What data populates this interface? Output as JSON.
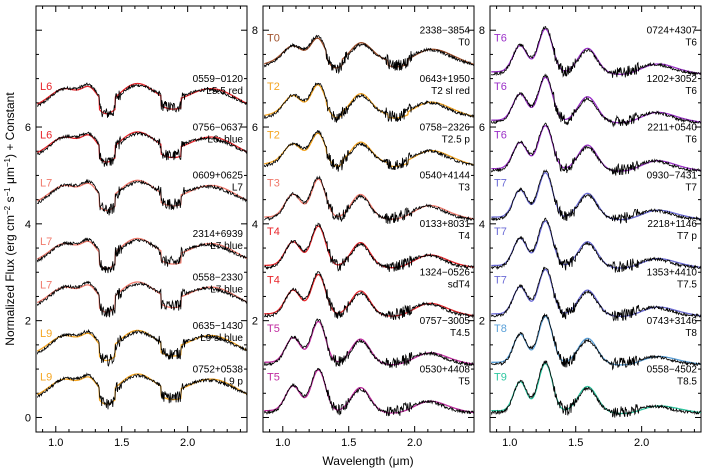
{
  "chart_data": {
    "type": "line",
    "ylabel_parts": [
      "Normalized Flux (erg cm",
      "−2",
      " s",
      "−1",
      " μm",
      "−1",
      ") + Constant"
    ],
    "xlabel": "Wavelength (μm)",
    "xlim": [
      0.85,
      2.45
    ],
    "xticks": [
      1.0,
      1.5,
      2.0
    ],
    "xtick_labels": [
      "1.0",
      "1.5",
      "2.0"
    ],
    "panels": [
      {
        "ylim": [
          -0.3,
          8.5
        ],
        "yticks": [
          0,
          2,
          4,
          6
        ],
        "ytick_labels": [
          "0",
          "2",
          "4",
          "6"
        ],
        "spectra": [
          {
            "type_label": "L6",
            "type_color": "#e8262b",
            "model_color": "#e8262b",
            "name": "0559−0120",
            "desc": "L5.5 red",
            "offset": 6.0,
            "kind": "L"
          },
          {
            "type_label": "L6",
            "type_color": "#e8262b",
            "model_color": "#e8262b",
            "name": "0756−0637",
            "desc": "L6: blue",
            "offset": 5.0,
            "kind": "L"
          },
          {
            "type_label": "L7",
            "type_color": "#f07a6c",
            "model_color": "#f07a6c",
            "name": "0609+0625",
            "desc": "L7",
            "offset": 4.0,
            "kind": "L"
          },
          {
            "type_label": "L7",
            "type_color": "#f07a6c",
            "model_color": "#f07a6c",
            "name": "2314+6939",
            "desc": "L7 blue",
            "offset": 2.8,
            "kind": "L"
          },
          {
            "type_label": "L7",
            "type_color": "#f07a6c",
            "model_color": "#f07a6c",
            "name": "0558−2330",
            "desc": "L7 blue",
            "offset": 1.9,
            "kind": "L"
          },
          {
            "type_label": "L9",
            "type_color": "#f5a623",
            "model_color": "#f5a623",
            "name": "0635−1430",
            "desc": "L9 sl blue",
            "offset": 0.9,
            "kind": "L"
          },
          {
            "type_label": "L9",
            "type_color": "#f5a623",
            "model_color": "#f5a623",
            "name": "0752+0538",
            "desc": "L9 p",
            "offset": 0.0,
            "kind": "L"
          }
        ]
      },
      {
        "ylim": [
          -0.3,
          8.5
        ],
        "yticks": [
          2,
          4,
          6,
          8
        ],
        "ytick_labels": [
          "2",
          "4",
          "6",
          "8"
        ],
        "spectra": [
          {
            "type_label": "T0",
            "type_color": "#a0522d",
            "model_color": "#a0522d",
            "name": "2338−3854",
            "desc": "T0",
            "offset": 7.0,
            "kind": "T0"
          },
          {
            "type_label": "T2",
            "type_color": "#f5a623",
            "model_color": "#f5a623",
            "name": "0643+1950",
            "desc": "T2 sl red",
            "offset": 6.0,
            "kind": "T2"
          },
          {
            "type_label": "T2",
            "type_color": "#f5a623",
            "model_color": "#f5a623",
            "name": "0758−2326",
            "desc": "T2.5 p",
            "offset": 5.0,
            "kind": "T2"
          },
          {
            "type_label": "T3",
            "type_color": "#f07a6c",
            "model_color": "#f07a6c",
            "name": "0540+4144",
            "desc": "T3",
            "offset": 4.0,
            "kind": "T3"
          },
          {
            "type_label": "T4",
            "type_color": "#e8262b",
            "model_color": "#e8262b",
            "name": "0133+8031",
            "desc": "T4",
            "offset": 3.0,
            "kind": "T4"
          },
          {
            "type_label": "T4",
            "type_color": "#e8262b",
            "model_color": "#e8262b",
            "name": "1324−0526",
            "desc": "sdT4",
            "offset": 2.0,
            "kind": "T4"
          },
          {
            "type_label": "T5",
            "type_color": "#c02ca0",
            "model_color": "#c02ca0",
            "name": "0757−3005",
            "desc": "T4.5",
            "offset": 1.0,
            "kind": "T5"
          },
          {
            "type_label": "T5",
            "type_color": "#c02ca0",
            "model_color": "#c02ca0",
            "name": "0530+4408",
            "desc": "T5",
            "offset": 0.0,
            "kind": "T5"
          }
        ]
      },
      {
        "ylim": [
          -0.3,
          8.5
        ],
        "yticks": [
          2,
          4,
          6,
          8
        ],
        "ytick_labels": [
          "2",
          "4",
          "6",
          "8"
        ],
        "spectra": [
          {
            "type_label": "T6",
            "type_color": "#9b30c8",
            "model_color": "#9b30c8",
            "name": "0724+4307",
            "desc": "T6",
            "offset": 7.0,
            "kind": "T6"
          },
          {
            "type_label": "T6",
            "type_color": "#9b30c8",
            "model_color": "#9b30c8",
            "name": "1202+3052",
            "desc": "T6",
            "offset": 6.0,
            "kind": "T6"
          },
          {
            "type_label": "T6",
            "type_color": "#9b30c8",
            "model_color": "#9b30c8",
            "name": "2211+0540",
            "desc": "T6",
            "offset": 5.0,
            "kind": "T6"
          },
          {
            "type_label": "T7",
            "type_color": "#6b6bd6",
            "model_color": "#6b6bd6",
            "name": "0930−7431",
            "desc": "T7",
            "offset": 4.0,
            "kind": "T7"
          },
          {
            "type_label": "T7",
            "type_color": "#6b6bd6",
            "model_color": "#6b6bd6",
            "name": "2218+1146",
            "desc": "T7 p",
            "offset": 3.0,
            "kind": "T7"
          },
          {
            "type_label": "T7",
            "type_color": "#6b6bd6",
            "model_color": "#6b6bd6",
            "name": "1353+4410",
            "desc": "T7.5",
            "offset": 2.0,
            "kind": "T7"
          },
          {
            "type_label": "T8",
            "type_color": "#5aa0d8",
            "model_color": "#5aa0d8",
            "name": "0743+3146",
            "desc": "T8",
            "offset": 1.0,
            "kind": "T8"
          },
          {
            "type_label": "T9",
            "type_color": "#2ec7a0",
            "model_color": "#2ec7a0",
            "name": "0558−4502",
            "desc": "T8.5",
            "offset": 0.0,
            "kind": "T9"
          }
        ]
      }
    ]
  }
}
